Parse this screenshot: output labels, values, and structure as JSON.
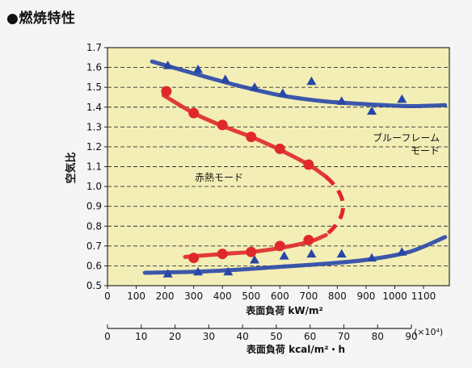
{
  "heading": "●燃焼特性",
  "chart_data": {
    "type": "scatter",
    "ylabel": "空気比",
    "xlabel": "表面負荷 kW/m²",
    "x2label": "表面負荷 kcal/m²・h",
    "x2_unit": "(×10⁴)",
    "xlim": [
      0,
      1190
    ],
    "ylim": [
      0.5,
      1.7
    ],
    "xticks": [
      0,
      100,
      200,
      300,
      400,
      500,
      600,
      700,
      800,
      900,
      1000,
      1100
    ],
    "yticks": [
      "0.5",
      "0.6",
      "0.7",
      "0.8",
      "0.9",
      "1.0",
      "1.1",
      "1.2",
      "1.3",
      "1.4",
      "1.5",
      "1.6",
      "1.7"
    ],
    "x2ticks": [
      0,
      10,
      20,
      30,
      40,
      50,
      60,
      70,
      80,
      90
    ],
    "grid": "horizontal dashed",
    "series": [
      {
        "name": "ブルーフレームモード",
        "label_lines": [
          "ブルーフレーム",
          "モード"
        ],
        "color": "#2846a8",
        "marker": "triangle",
        "points": [
          [
            210,
            1.61
          ],
          [
            315,
            1.59
          ],
          [
            410,
            1.54
          ],
          [
            512,
            1.5
          ],
          [
            610,
            1.47
          ],
          [
            710,
            1.53
          ],
          [
            815,
            1.43
          ],
          [
            920,
            1.38
          ],
          [
            1025,
            1.44
          ],
          [
            210,
            0.56
          ],
          [
            315,
            0.57
          ],
          [
            420,
            0.57
          ],
          [
            512,
            0.63
          ],
          [
            615,
            0.65
          ],
          [
            710,
            0.66
          ],
          [
            815,
            0.66
          ],
          [
            920,
            0.64
          ],
          [
            1025,
            0.67
          ]
        ],
        "upper_curve": [
          [
            155,
            1.63
          ],
          [
            300,
            1.57
          ],
          [
            450,
            1.51
          ],
          [
            600,
            1.46
          ],
          [
            750,
            1.43
          ],
          [
            900,
            1.415
          ],
          [
            1050,
            1.405
          ],
          [
            1175,
            1.41
          ]
        ],
        "lower_curve": [
          [
            130,
            0.565
          ],
          [
            300,
            0.57
          ],
          [
            450,
            0.58
          ],
          [
            600,
            0.595
          ],
          [
            750,
            0.61
          ],
          [
            900,
            0.63
          ],
          [
            1050,
            0.67
          ],
          [
            1175,
            0.745
          ]
        ]
      },
      {
        "name": "赤熱モード",
        "label_lines": [
          "赤熱モード"
        ],
        "color": "#e0282a",
        "marker": "circle",
        "points": [
          [
            205,
            1.48
          ],
          [
            300,
            1.37
          ],
          [
            400,
            1.31
          ],
          [
            500,
            1.25
          ],
          [
            600,
            1.19
          ],
          [
            700,
            1.11
          ],
          [
            300,
            0.64
          ],
          [
            400,
            0.66
          ],
          [
            500,
            0.67
          ],
          [
            600,
            0.7
          ],
          [
            700,
            0.73
          ]
        ],
        "upper_curve": [
          [
            195,
            1.46
          ],
          [
            300,
            1.37
          ],
          [
            400,
            1.305
          ],
          [
            500,
            1.25
          ],
          [
            600,
            1.185
          ],
          [
            700,
            1.11
          ],
          [
            760,
            1.05
          ]
        ],
        "lower_curve": [
          [
            270,
            0.645
          ],
          [
            400,
            0.66
          ],
          [
            500,
            0.67
          ],
          [
            600,
            0.69
          ],
          [
            700,
            0.72
          ],
          [
            760,
            0.755
          ]
        ],
        "transition_curve": [
          [
            760,
            1.05
          ],
          [
            820,
            0.9
          ],
          [
            760,
            0.755
          ]
        ]
      }
    ]
  }
}
